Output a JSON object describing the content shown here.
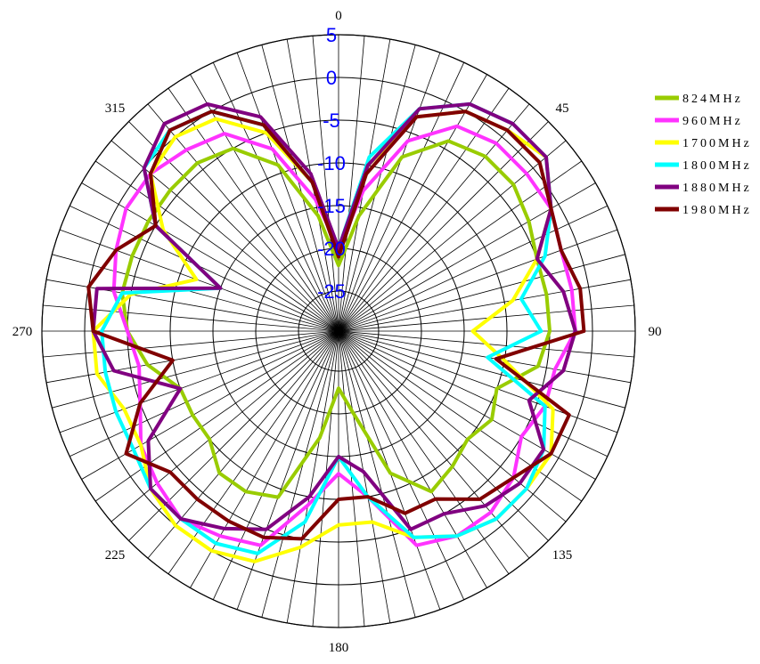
{
  "chart_data": {
    "type": "polar-line",
    "title": "",
    "angular_axis": {
      "unit": "degrees",
      "direction": "clockwise",
      "zero_at": "top",
      "labels": [
        {
          "angle": 0,
          "text": "0"
        },
        {
          "angle": 45,
          "text": "45"
        },
        {
          "angle": 90,
          "text": "90"
        },
        {
          "angle": 135,
          "text": "135"
        },
        {
          "angle": 180,
          "text": "180"
        },
        {
          "angle": 225,
          "text": "225"
        },
        {
          "angle": 270,
          "text": "270"
        },
        {
          "angle": 315,
          "text": "315"
        }
      ],
      "spoke_step": 5
    },
    "radial_axis": {
      "range": [
        -25,
        5
      ],
      "ticks": [
        -25,
        -20,
        -15,
        -10,
        -5,
        0,
        5
      ],
      "tick_labels": [
        "-25",
        "-20",
        "-15",
        "-10",
        "-5",
        "0",
        "5"
      ],
      "label_color": "#0000ff"
    },
    "legend": {
      "position": "right"
    },
    "series": [
      {
        "name": "824MHz",
        "color": "#99cc00",
        "theta": [
          0,
          10,
          20,
          30,
          40,
          50,
          60,
          70,
          80,
          90,
          100,
          110,
          120,
          130,
          140,
          150,
          160,
          170,
          180,
          190,
          200,
          210,
          220,
          230,
          240,
          250,
          260,
          270,
          280,
          290,
          300,
          310,
          320,
          330,
          340,
          350
        ],
        "r": [
          -22,
          -16,
          -8,
          -4,
          -3,
          -3,
          -4,
          -5,
          -5,
          -5,
          -6,
          -10,
          -9,
          -10,
          -9,
          -8,
          -12,
          -20,
          -23,
          -17,
          -9,
          -8,
          -8,
          -10,
          -10,
          -10,
          -7,
          -5,
          -4,
          -4,
          -4,
          -4,
          -4,
          -5,
          -9,
          -16
        ]
      },
      {
        "name": "960MHz",
        "color": "#ff33ff",
        "theta": [
          0,
          10,
          20,
          30,
          40,
          50,
          60,
          70,
          80,
          90,
          100,
          110,
          120,
          130,
          140,
          150,
          160,
          170,
          180,
          190,
          200,
          210,
          220,
          230,
          240,
          250,
          260,
          270,
          280,
          290,
          300,
          310,
          320,
          330,
          340,
          350
        ],
        "r": [
          -20,
          -13,
          -6,
          -2,
          -1,
          -1,
          -1,
          -2,
          -2,
          -2,
          -4,
          -4,
          -5,
          -3,
          -2,
          -2,
          -3,
          -10,
          -13,
          -9,
          -3,
          -2,
          -1,
          -2,
          -3,
          -5,
          -6,
          -5,
          -3,
          -2,
          -1,
          -1,
          -2,
          -3,
          -7,
          -14
        ]
      },
      {
        "name": "1700MHz",
        "color": "#ffff00",
        "theta": [
          0,
          10,
          20,
          30,
          40,
          50,
          60,
          70,
          80,
          90,
          100,
          110,
          120,
          130,
          140,
          150,
          160,
          170,
          180,
          190,
          200,
          210,
          220,
          230,
          240,
          250,
          260,
          270,
          280,
          290,
          300,
          310,
          320,
          330,
          340,
          350
        ],
        "r": [
          -20,
          -10,
          -3,
          0,
          1,
          2,
          -1,
          -5,
          -9,
          -14,
          -10,
          -3,
          -1,
          -1,
          -1,
          -2,
          -4,
          -7,
          -7,
          -4,
          -1,
          0,
          0,
          -1,
          -3,
          -3,
          -1,
          -1,
          -5,
          -12,
          -6,
          -1,
          0,
          -1,
          -5,
          -12
        ]
      },
      {
        "name": "1800MHz",
        "color": "#00ffff",
        "theta": [
          0,
          10,
          20,
          30,
          40,
          50,
          60,
          70,
          80,
          90,
          100,
          110,
          120,
          130,
          140,
          150,
          160,
          170,
          180,
          190,
          200,
          210,
          220,
          230,
          240,
          250,
          260,
          270,
          280,
          290,
          300,
          310,
          320,
          330,
          340,
          350
        ],
        "r": [
          -20,
          -9,
          -2,
          1,
          2,
          2,
          -1,
          -4,
          -8,
          -6,
          -12,
          -4,
          -2,
          -1,
          -1,
          -2,
          -4,
          -10,
          -15,
          -7,
          -2,
          -1,
          -1,
          -1,
          -2,
          -2,
          -2,
          -2,
          -4,
          -15,
          -5,
          0,
          1,
          0,
          -4,
          -12
        ]
      },
      {
        "name": "1880MHz",
        "color": "#800080",
        "theta": [
          0,
          10,
          20,
          30,
          40,
          50,
          60,
          70,
          80,
          90,
          100,
          110,
          120,
          130,
          140,
          150,
          160,
          170,
          180,
          190,
          200,
          210,
          220,
          230,
          240,
          250,
          260,
          270,
          280,
          290,
          300,
          310,
          320,
          330,
          340,
          350
        ],
        "r": [
          -20,
          -10,
          -2,
          1,
          2,
          2,
          -1,
          -5,
          -3,
          -2,
          -3,
          -6,
          -2,
          -2,
          -3,
          -5,
          -5,
          -13,
          -15,
          -10,
          -5,
          -3,
          -1,
          -1,
          -4,
          -10,
          -3,
          -1,
          -1,
          -15,
          -5,
          0,
          2,
          1,
          -3,
          -11
        ]
      },
      {
        "name": "1980MHz",
        "color": "#800000",
        "theta": [
          0,
          10,
          20,
          30,
          40,
          50,
          60,
          70,
          80,
          90,
          100,
          110,
          120,
          130,
          140,
          150,
          160,
          170,
          180,
          190,
          200,
          210,
          220,
          230,
          240,
          250,
          260,
          270,
          280,
          290,
          300,
          310,
          320,
          330,
          340,
          350
        ],
        "r": [
          -21,
          -11,
          -3,
          0,
          1,
          1,
          -1,
          -2,
          -1,
          -1,
          -11,
          -1,
          -1,
          -3,
          -4,
          -7,
          -7,
          -10,
          -10,
          -5,
          -4,
          -4,
          -4,
          -4,
          -1,
          -5,
          -10,
          -1,
          0,
          -2,
          -5,
          -1,
          1,
          0,
          -4,
          -12
        ]
      }
    ]
  }
}
